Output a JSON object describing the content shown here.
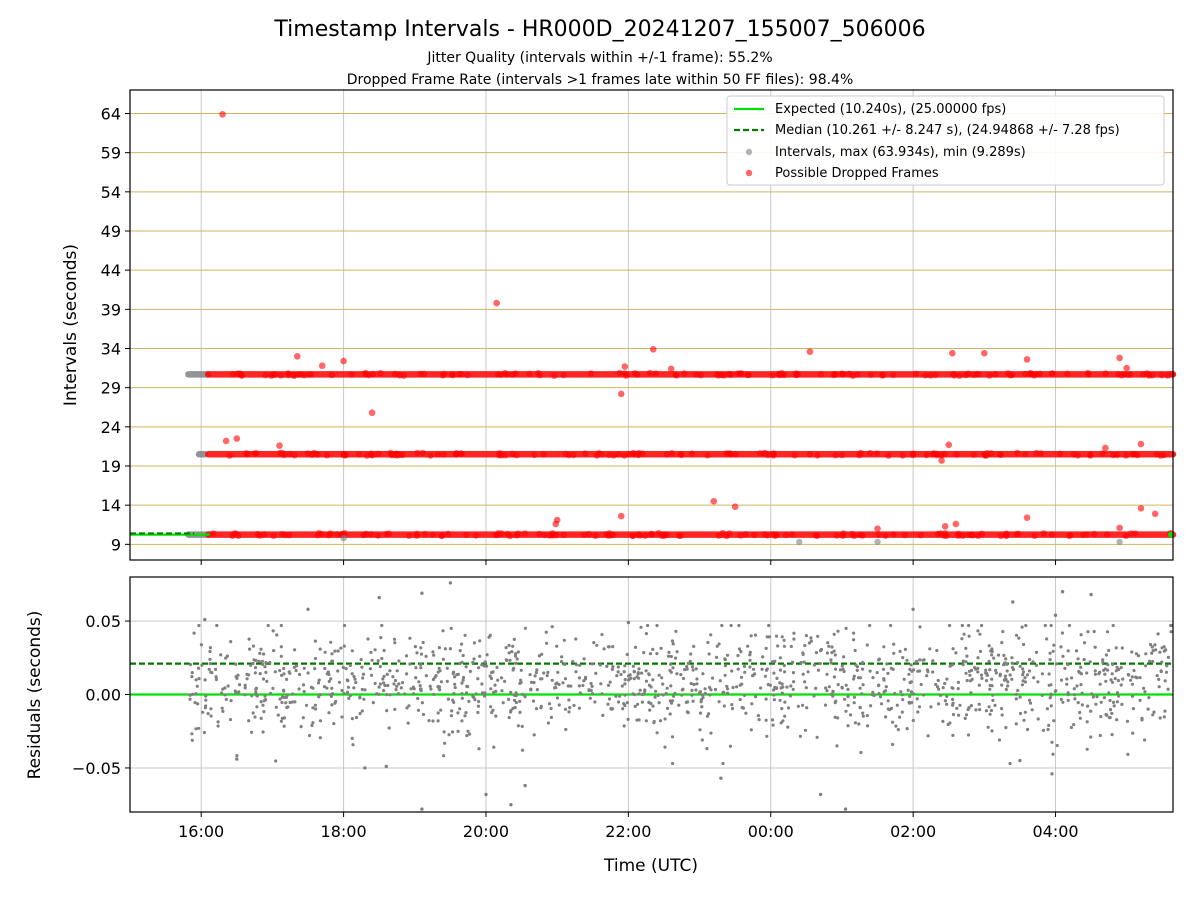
{
  "figure": {
    "title": "Timestamp Intervals - HR000D_20241207_155007_506006",
    "subtitle_1": "Jitter Quality (intervals within +/-1 frame): 55.2%",
    "subtitle_2": "Dropped Frame Rate (intervals >1 frames late within 50 FF files): 98.4%"
  },
  "colors": {
    "expected": "#00e000",
    "median": "#007a00",
    "intervals": "#808080",
    "dropped": "#ff0000",
    "hgrid_top": "#d2b460",
    "grid": "#c8c8c8"
  },
  "legend": {
    "placement": "top-right",
    "expected": "Expected (10.240s), (25.00000 fps)",
    "median": "Median (10.261 +/- 8.247 s), (24.94868 +/- 7.28 fps)",
    "intervals": "Intervals, max (63.934s), min (9.289s)",
    "dropped": "Possible Dropped Frames"
  },
  "chart_data": [
    {
      "type": "scatter",
      "panel": "top",
      "ylabel": "Intervals (seconds)",
      "ylim": [
        7,
        67
      ],
      "yticks": [
        "9",
        "14",
        "19",
        "24",
        "29",
        "34",
        "39",
        "44",
        "49",
        "54",
        "59",
        "64"
      ],
      "xlim_hours": [
        15.0,
        29.65
      ],
      "expected": 10.24,
      "median": 10.261,
      "bands": [
        {
          "name": "Intervals",
          "y": 10.24,
          "x_start": 15.82,
          "x_end": 16.1
        },
        {
          "name": "Intervals",
          "y": 20.5,
          "x_start": 15.97,
          "x_end": 16.05
        },
        {
          "name": "Intervals",
          "y": 30.7,
          "x_start": 15.82,
          "x_end": 16.1
        },
        {
          "name": "Possible Dropped Frames",
          "y": 10.24,
          "x_start": 16.1,
          "x_end": 29.65
        },
        {
          "name": "Possible Dropped Frames",
          "y": 20.5,
          "x_start": 16.1,
          "x_end": 29.65
        },
        {
          "name": "Possible Dropped Frames",
          "y": 30.7,
          "x_start": 16.1,
          "x_end": 29.65
        }
      ],
      "dropped_outliers": [
        [
          16.3,
          63.9
        ],
        [
          20.15,
          39.8
        ],
        [
          17.35,
          33.0
        ],
        [
          17.7,
          31.8
        ],
        [
          18.0,
          32.4
        ],
        [
          18.4,
          25.8
        ],
        [
          21.95,
          31.7
        ],
        [
          22.35,
          33.9
        ],
        [
          22.6,
          31.4
        ],
        [
          21.9,
          28.2
        ],
        [
          24.55,
          33.6
        ],
        [
          26.55,
          33.4
        ],
        [
          27.0,
          33.4
        ],
        [
          27.6,
          32.6
        ],
        [
          28.9,
          32.8
        ],
        [
          29.0,
          31.5
        ],
        [
          16.35,
          22.2
        ],
        [
          16.5,
          22.5
        ],
        [
          17.1,
          21.6
        ],
        [
          26.4,
          19.7
        ],
        [
          26.5,
          21.7
        ],
        [
          28.7,
          21.3
        ],
        [
          29.2,
          21.8
        ],
        [
          23.2,
          14.5
        ],
        [
          23.5,
          13.8
        ],
        [
          21.0,
          12.1
        ],
        [
          21.9,
          12.6
        ],
        [
          20.98,
          11.6
        ],
        [
          27.6,
          12.4
        ],
        [
          29.2,
          13.6
        ],
        [
          29.4,
          12.9
        ],
        [
          26.45,
          11.3
        ],
        [
          26.6,
          11.6
        ],
        [
          25.5,
          11.0
        ],
        [
          28.9,
          11.1
        ]
      ],
      "interval_outliers": [
        [
          24.4,
          9.3
        ],
        [
          25.5,
          9.3
        ],
        [
          28.9,
          9.3
        ],
        [
          18.0,
          9.8
        ]
      ]
    },
    {
      "type": "scatter",
      "panel": "bottom",
      "xlabel": "Time (UTC)",
      "ylabel": "Residuals (seconds)",
      "ylim": [
        -0.08,
        0.08
      ],
      "yticks": [
        "−0.05",
        "0.00",
        "0.05"
      ],
      "xticks": [
        "16:00",
        "18:00",
        "20:00",
        "22:00",
        "00:00",
        "02:00",
        "04:00"
      ],
      "xtick_hours": [
        16,
        18,
        20,
        22,
        24,
        26,
        28
      ],
      "xlim_hours": [
        15.0,
        29.65
      ],
      "expected_residual": 0.0,
      "median_residual": 0.021,
      "points_summary": {
        "count": 1400,
        "center": 0.008,
        "spread": 0.018,
        "x_start": 15.82,
        "x_end": 29.65
      },
      "highlighted_points": [
        [
          16.05,
          0.051
        ],
        [
          17.5,
          0.058
        ],
        [
          18.5,
          0.066
        ],
        [
          19.1,
          0.069
        ],
        [
          19.5,
          0.076
        ],
        [
          22.0,
          0.049
        ],
        [
          26.0,
          0.058
        ],
        [
          27.4,
          0.063
        ],
        [
          28.0,
          0.054
        ],
        [
          28.1,
          0.07
        ],
        [
          28.5,
          0.068
        ],
        [
          18.3,
          -0.05
        ],
        [
          19.1,
          -0.078
        ],
        [
          20.0,
          -0.068
        ],
        [
          20.35,
          -0.075
        ],
        [
          20.55,
          -0.062
        ],
        [
          23.3,
          -0.057
        ],
        [
          24.7,
          -0.068
        ],
        [
          25.05,
          -0.078
        ],
        [
          27.5,
          -0.045
        ],
        [
          27.95,
          -0.054
        ],
        [
          16.5,
          -0.044
        ],
        [
          18.6,
          -0.049
        ]
      ]
    }
  ]
}
